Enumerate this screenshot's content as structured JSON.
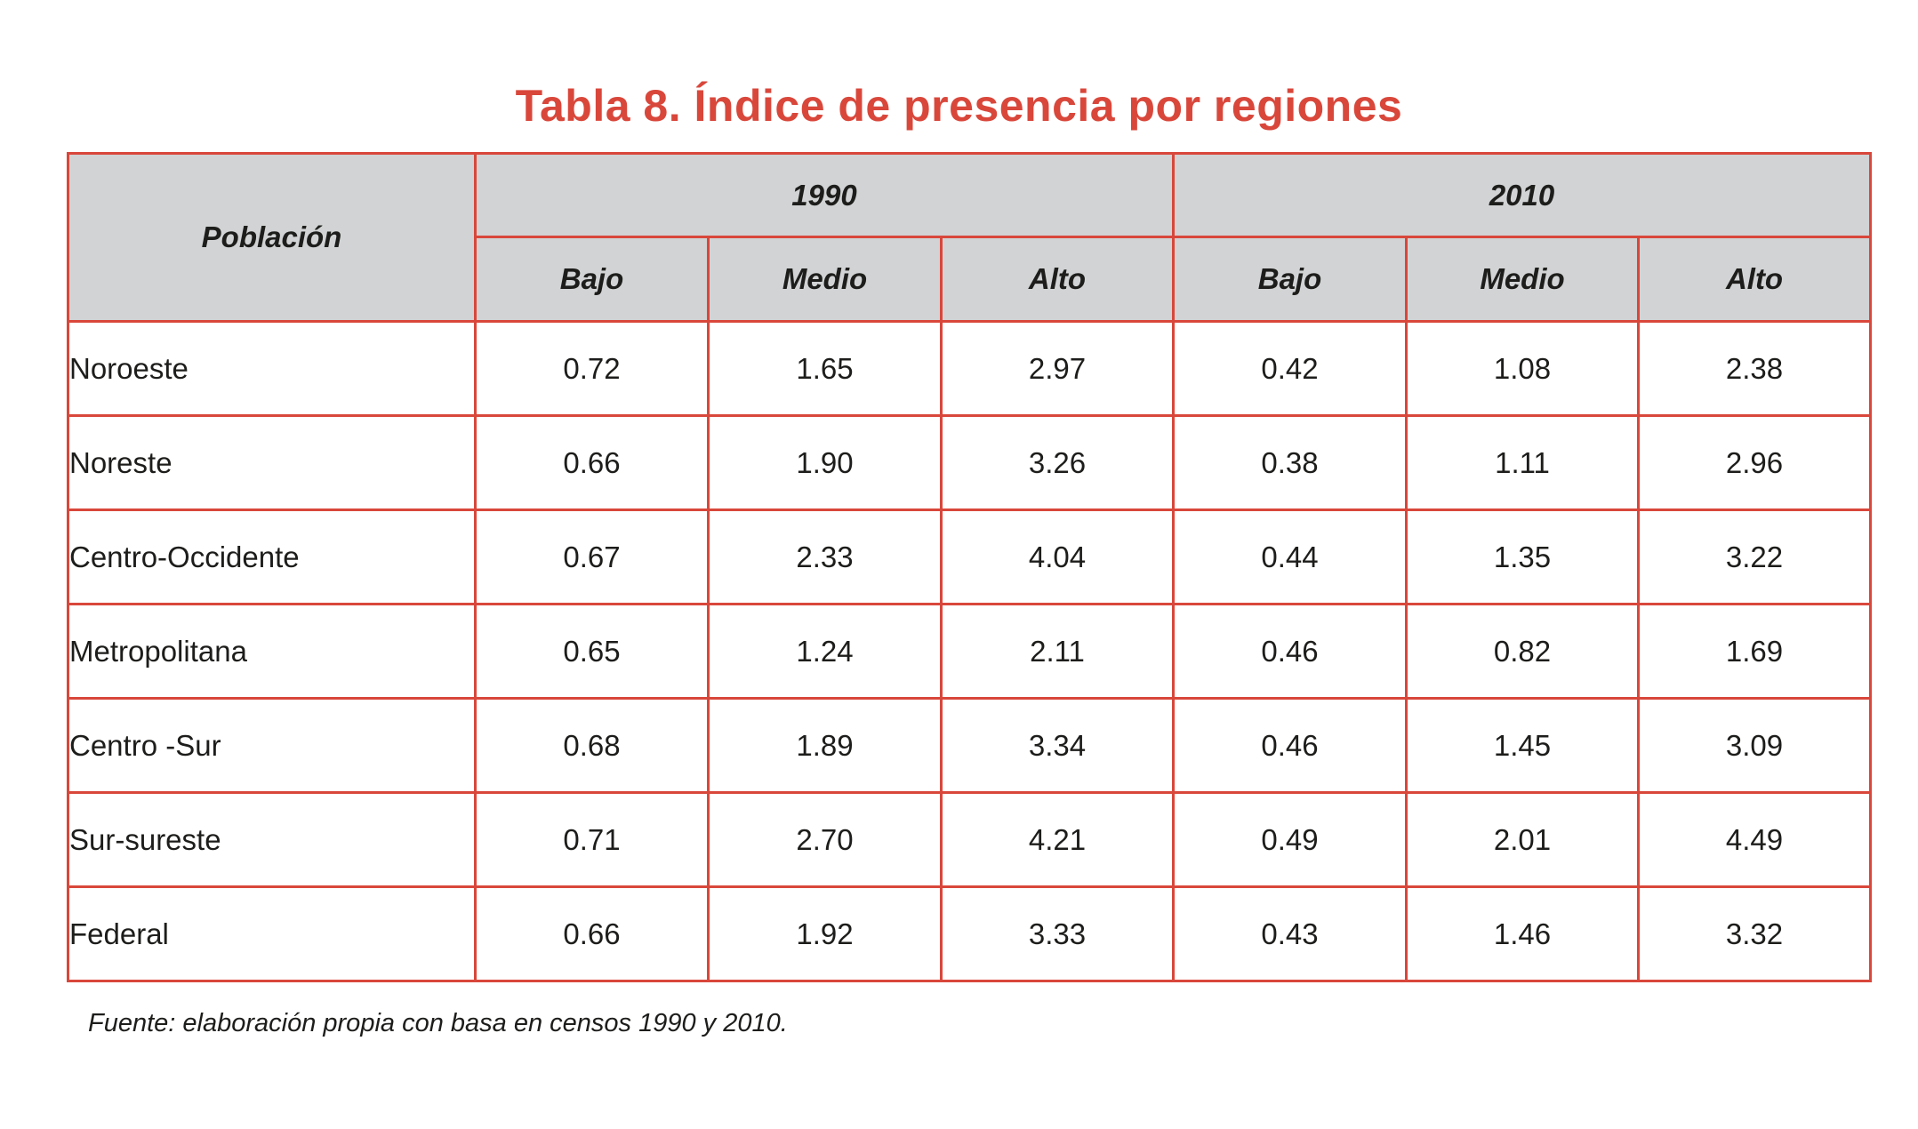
{
  "title": "Tabla 8. Índice de presencia por regiones",
  "table": {
    "row_header": "Población",
    "years": [
      "1990",
      "2010"
    ],
    "levels": [
      "Bajo",
      "Medio",
      "Alto",
      "Bajo",
      "Medio",
      "Alto"
    ],
    "rows": [
      {
        "name": "Noroeste",
        "values": [
          "0.72",
          "1.65",
          "2.97",
          "0.42",
          "1.08",
          "2.38"
        ]
      },
      {
        "name": "Noreste",
        "values": [
          "0.66",
          "1.90",
          "3.26",
          "0.38",
          "1.11",
          "2.96"
        ]
      },
      {
        "name": "Centro-Occidente",
        "values": [
          "0.67",
          "2.33",
          "4.04",
          "0.44",
          "1.35",
          "3.22"
        ]
      },
      {
        "name": "Metropolitana",
        "values": [
          "0.65",
          "1.24",
          "2.11",
          "0.46",
          "0.82",
          "1.69"
        ]
      },
      {
        "name": "Centro -Sur",
        "values": [
          "0.68",
          "1.89",
          "3.34",
          "0.46",
          "1.45",
          "3.09"
        ]
      },
      {
        "name": "Sur-sureste",
        "values": [
          "0.71",
          "2.70",
          "4.21",
          "0.49",
          "2.01",
          "4.49"
        ]
      },
      {
        "name": "Federal",
        "values": [
          "0.66",
          "1.92",
          "3.33",
          "0.43",
          "1.46",
          "3.32"
        ]
      }
    ]
  },
  "source": "Fuente: elaboración propia con basa en censos 1990 y 2010.",
  "colors": {
    "accent": "#d9473b",
    "header_bg": "#d1d3d4",
    "text": "#1d1d1b"
  }
}
